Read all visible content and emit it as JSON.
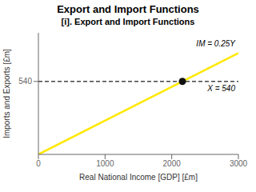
{
  "chart_data": {
    "type": "line",
    "title": "Export and Import Functions",
    "subtitle": "[i]. Export and Import Functions",
    "xlabel": "Real National Income [GDP] [£m]",
    "ylabel": "Imports and Exports [£m]",
    "xlim": [
      0,
      3000
    ],
    "ylim": [
      0,
      900
    ],
    "xticks": [
      0,
      1000,
      2000,
      3000
    ],
    "yticks": [
      540
    ],
    "series": [
      {
        "name": "IM = 0.25Y",
        "color": "#FFE800",
        "x": [
          0,
          3000
        ],
        "values": [
          0,
          750
        ]
      },
      {
        "name": "X = 540",
        "color": "#444444",
        "line_style": "dashed",
        "x": [
          0,
          3000
        ],
        "values": [
          540,
          540
        ]
      },
      {
        "type": "scatter",
        "marker": "circle",
        "color": "#111111",
        "x": [
          2160
        ],
        "values": [
          540
        ]
      }
    ]
  }
}
